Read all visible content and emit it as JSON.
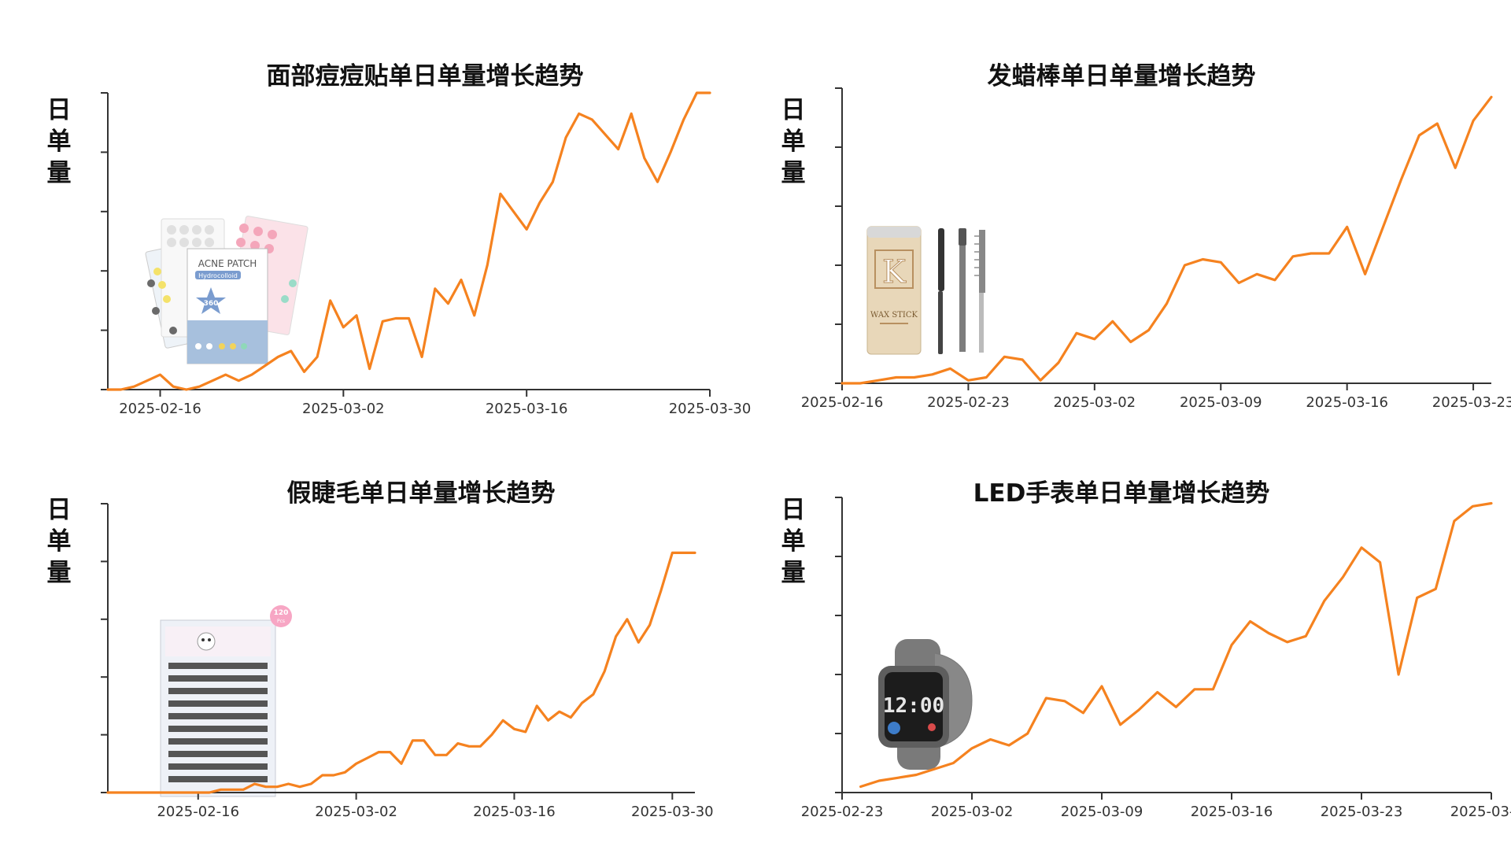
{
  "chart_data": [
    {
      "type": "line",
      "title": "面部痘痘贴单日单量增长趋势",
      "ylabel": "日单量",
      "xticks": [
        "2025-02-16",
        "2025-03-02",
        "2025-03-16",
        "2025-03-30"
      ],
      "xtick_days": [
        4,
        18,
        32,
        46
      ],
      "ylim": [
        0,
        100
      ],
      "series": [
        {
          "x": [
            0,
            1,
            2,
            3,
            4,
            5,
            6,
            7,
            8,
            9,
            10,
            11,
            12,
            13,
            14,
            15,
            16,
            17,
            18,
            19,
            20,
            21,
            22,
            23,
            24,
            25,
            26,
            27,
            28,
            29,
            30,
            31,
            32,
            33,
            34,
            35,
            36,
            37,
            38,
            39,
            40,
            41,
            42,
            43,
            44,
            45,
            46
          ],
          "values": [
            0,
            0,
            1,
            3,
            5,
            1,
            0,
            1,
            3,
            5,
            3,
            5,
            8,
            11,
            13,
            6,
            11,
            30,
            21,
            25,
            7,
            23,
            24,
            24,
            11,
            34,
            29,
            37,
            25,
            42,
            66,
            60,
            54,
            63,
            70,
            85,
            93,
            91,
            86,
            81,
            93,
            78,
            70,
            80,
            91,
            100,
            100
          ]
        }
      ],
      "product_image": {
        "name": "acne-patch-product-icon",
        "label": "ACNE PATCH",
        "sublabel": "Hydrocolloid",
        "count": "360"
      }
    },
    {
      "type": "line",
      "title": "发蜡棒单日单量增长趋势",
      "ylabel": "日单量",
      "xticks": [
        "2025-02-16",
        "2025-02-23",
        "2025-03-02",
        "2025-03-09",
        "2025-03-16",
        "2025-03-23"
      ],
      "xtick_days": [
        0,
        7,
        14,
        21,
        28,
        35
      ],
      "ylim": [
        0,
        100
      ],
      "series": [
        {
          "x": [
            0,
            1,
            2,
            3,
            4,
            5,
            6,
            7,
            8,
            9,
            10,
            11,
            12,
            13,
            14,
            15,
            16,
            17,
            18,
            19,
            20,
            21,
            22,
            23,
            24,
            25,
            26,
            27,
            28,
            29,
            30,
            31,
            32,
            33,
            34,
            35,
            36
          ],
          "values": [
            0,
            0,
            1,
            2,
            2,
            3,
            5,
            1,
            2,
            9,
            8,
            1,
            7,
            17,
            15,
            21,
            14,
            18,
            27,
            40,
            42,
            41,
            34,
            37,
            35,
            43,
            44,
            44,
            53,
            37,
            53,
            69,
            84,
            88,
            73,
            89,
            97
          ]
        }
      ],
      "product_image": {
        "name": "wax-stick-product-icon",
        "label": "WAX STICK",
        "brand_letter": "K"
      }
    },
    {
      "type": "line",
      "title": "假睫毛单日单量增长趋势",
      "ylabel": "日单量",
      "xticks": [
        "2025-02-16",
        "2025-03-02",
        "2025-03-16",
        "2025-03-30"
      ],
      "xtick_days": [
        8,
        22,
        36,
        50
      ],
      "ylim": [
        0,
        100
      ],
      "series": [
        {
          "x": [
            0,
            1,
            2,
            3,
            4,
            5,
            6,
            7,
            8,
            9,
            10,
            11,
            12,
            13,
            14,
            15,
            16,
            17,
            18,
            19,
            20,
            21,
            22,
            23,
            24,
            25,
            26,
            27,
            28,
            29,
            30,
            31,
            32,
            33,
            34,
            35,
            36,
            37,
            38,
            39,
            40,
            41,
            42,
            43,
            44,
            45,
            46,
            47,
            48,
            49,
            50,
            51,
            52
          ],
          "values": [
            0,
            0,
            0,
            0,
            0,
            0,
            0,
            0,
            0,
            0,
            1,
            1,
            1,
            3,
            2,
            2,
            3,
            2,
            3,
            6,
            6,
            7,
            10,
            12,
            14,
            14,
            10,
            18,
            18,
            13,
            13,
            17,
            16,
            16,
            20,
            25,
            22,
            21,
            30,
            25,
            28,
            26,
            31,
            34,
            42,
            54,
            60,
            52,
            58,
            70,
            83,
            83,
            83
          ]
        }
      ],
      "product_image": {
        "name": "false-lashes-product-icon",
        "count": "120",
        "unit": "Pcs"
      }
    },
    {
      "type": "line",
      "title": "LED手表单日单量增长趋势",
      "ylabel": "日单量",
      "xticks": [
        "2025-02-23",
        "2025-03-02",
        "2025-03-09",
        "2025-03-16",
        "2025-03-23",
        "2025-03-30"
      ],
      "xtick_days": [
        0,
        7,
        14,
        21,
        28,
        35
      ],
      "ylim": [
        0,
        100
      ],
      "series": [
        {
          "x": [
            1,
            2,
            3,
            4,
            5,
            6,
            7,
            8,
            9,
            10,
            11,
            12,
            13,
            14,
            15,
            16,
            17,
            18,
            19,
            20,
            21,
            22,
            23,
            24,
            25,
            26,
            27,
            28,
            29,
            30,
            31,
            32,
            33,
            34,
            35
          ],
          "values": [
            2,
            4,
            5,
            6,
            8,
            10,
            15,
            18,
            16,
            20,
            32,
            31,
            27,
            36,
            23,
            28,
            34,
            29,
            35,
            35,
            50,
            58,
            54,
            51,
            53,
            65,
            73,
            83,
            78,
            40,
            66,
            69,
            92,
            97,
            98
          ]
        }
      ],
      "product_image": {
        "name": "led-watch-product-icon",
        "display": "12:00"
      }
    }
  ]
}
